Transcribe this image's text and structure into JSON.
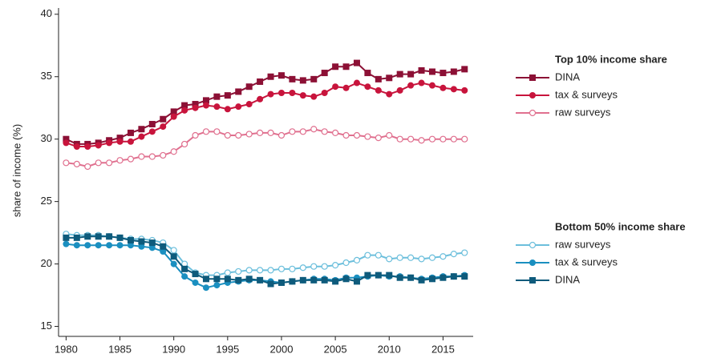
{
  "chart_data": {
    "type": "line",
    "y_label": "share of income (%)",
    "x": [
      1980,
      1981,
      1982,
      1983,
      1984,
      1985,
      1986,
      1987,
      1988,
      1989,
      1990,
      1991,
      1992,
      1993,
      1994,
      1995,
      1996,
      1997,
      1998,
      1999,
      2000,
      2001,
      2002,
      2003,
      2004,
      2005,
      2006,
      2007,
      2008,
      2009,
      2010,
      2011,
      2012,
      2013,
      2014,
      2015,
      2016,
      2017
    ],
    "xlim": [
      1979.3,
      2017.8
    ],
    "xticks": [
      1980,
      1985,
      1990,
      1995,
      2000,
      2005,
      2010,
      2015
    ],
    "ylim": [
      14.2,
      40.5
    ],
    "yticks": [
      15,
      20,
      25,
      30,
      35,
      40
    ],
    "grid": false,
    "legend_titles": [
      "Top 10% income share",
      "Bottom 50% income share"
    ],
    "series": [
      {
        "name": "DINA",
        "color": "#8c1035",
        "marker": "square",
        "values": [
          30.0,
          29.6,
          29.6,
          29.7,
          29.9,
          30.1,
          30.5,
          30.8,
          31.2,
          31.6,
          32.2,
          32.7,
          32.8,
          33.1,
          33.4,
          33.5,
          33.8,
          34.2,
          34.6,
          35.0,
          35.1,
          34.8,
          34.7,
          34.8,
          35.3,
          35.8,
          35.8,
          36.1,
          35.3,
          34.8,
          34.9,
          35.2,
          35.2,
          35.5,
          35.4,
          35.3,
          35.4,
          35.6
        ]
      },
      {
        "name": "tax & surveys",
        "color": "#c8143c",
        "marker": "circle",
        "values": [
          29.7,
          29.4,
          29.4,
          29.5,
          29.7,
          29.8,
          29.8,
          30.2,
          30.6,
          31.0,
          31.8,
          32.3,
          32.5,
          32.7,
          32.6,
          32.4,
          32.6,
          32.8,
          33.2,
          33.6,
          33.7,
          33.7,
          33.5,
          33.4,
          33.7,
          34.2,
          34.1,
          34.5,
          34.2,
          33.9,
          33.6,
          33.9,
          34.3,
          34.5,
          34.3,
          34.1,
          34.0,
          33.9
        ]
      },
      {
        "name": "raw surveys",
        "color": "#e0708f",
        "marker": "open-circle",
        "values": [
          28.1,
          28.0,
          27.8,
          28.1,
          28.1,
          28.3,
          28.4,
          28.6,
          28.6,
          28.7,
          29.0,
          29.6,
          30.3,
          30.6,
          30.6,
          30.3,
          30.3,
          30.4,
          30.5,
          30.5,
          30.3,
          30.6,
          30.6,
          30.8,
          30.6,
          30.5,
          30.3,
          30.3,
          30.2,
          30.1,
          30.3,
          30.0,
          30.0,
          29.9,
          30.0,
          30.0,
          30.0,
          30.0
        ]
      },
      {
        "name": "raw surveys",
        "color": "#6cbfdc",
        "marker": "open-circle",
        "values": [
          22.4,
          22.3,
          22.3,
          22.3,
          22.2,
          22.1,
          22.0,
          22.0,
          21.9,
          21.7,
          21.1,
          20.0,
          19.3,
          19.1,
          19.1,
          19.3,
          19.4,
          19.5,
          19.5,
          19.5,
          19.6,
          19.6,
          19.7,
          19.8,
          19.8,
          19.9,
          20.1,
          20.3,
          20.7,
          20.7,
          20.4,
          20.5,
          20.5,
          20.4,
          20.5,
          20.6,
          20.8,
          20.9
        ]
      },
      {
        "name": "tax & surveys",
        "color": "#1a8fc0",
        "marker": "circle",
        "values": [
          21.6,
          21.5,
          21.5,
          21.5,
          21.5,
          21.5,
          21.5,
          21.4,
          21.3,
          21.0,
          20.0,
          19.0,
          18.5,
          18.1,
          18.3,
          18.5,
          18.6,
          18.7,
          18.7,
          18.6,
          18.5,
          18.6,
          18.7,
          18.8,
          18.8,
          18.7,
          18.9,
          18.9,
          19.0,
          19.1,
          19.0,
          19.0,
          18.9,
          18.8,
          18.9,
          19.0,
          19.0,
          19.1
        ]
      },
      {
        "name": "DINA",
        "color": "#0e5b7c",
        "marker": "square",
        "values": [
          22.1,
          22.1,
          22.2,
          22.2,
          22.2,
          22.1,
          21.9,
          21.8,
          21.7,
          21.4,
          20.6,
          19.6,
          19.2,
          18.8,
          18.8,
          18.8,
          18.7,
          18.8,
          18.7,
          18.4,
          18.5,
          18.6,
          18.7,
          18.7,
          18.7,
          18.6,
          18.8,
          18.6,
          19.1,
          19.1,
          19.1,
          18.9,
          18.9,
          18.7,
          18.8,
          18.9,
          19.0,
          19.0
        ]
      }
    ]
  }
}
